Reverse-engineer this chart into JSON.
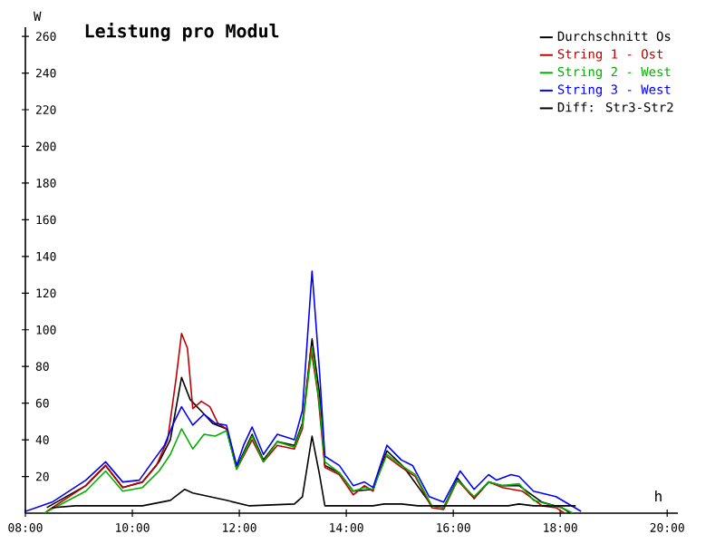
{
  "chart_data": {
    "type": "line",
    "title": "Leistung pro Modul",
    "xlabel": "h",
    "ylabel": "W",
    "xlim": [
      8,
      20.2
    ],
    "ylim": [
      0,
      265
    ],
    "xticks": [
      {
        "value": 8,
        "label": "08:00"
      },
      {
        "value": 10,
        "label": "10:00"
      },
      {
        "value": 12,
        "label": "12:00"
      },
      {
        "value": 14,
        "label": "14:00"
      },
      {
        "value": 16,
        "label": "16:00"
      },
      {
        "value": 18,
        "label": "18:00"
      },
      {
        "value": 20,
        "label": "20:00"
      }
    ],
    "yticks": [
      20,
      40,
      60,
      80,
      100,
      120,
      140,
      160,
      180,
      200,
      220,
      240,
      260
    ],
    "legend": "top right",
    "series": [
      {
        "name": "Durchschnitt Os",
        "color": "#000000",
        "x": [
          8.4,
          9.13,
          9.5,
          9.82,
          10.19,
          10.5,
          10.71,
          10.92,
          11.08,
          11.31,
          11.5,
          11.76,
          11.95,
          12.24,
          12.45,
          12.71,
          13.03,
          13.18,
          13.36,
          13.5,
          13.6,
          13.87,
          14.13,
          14.5,
          14.76,
          15.08,
          15.6,
          15.82,
          16.08,
          16.39,
          16.66,
          16.92,
          17.23,
          17.66,
          18.03,
          18.19
        ],
        "values": [
          3,
          15,
          26,
          14,
          17,
          28,
          40,
          74,
          62,
          55,
          49,
          46,
          25,
          43,
          29,
          39,
          37,
          49,
          95,
          65,
          26,
          22,
          12,
          13,
          34,
          25,
          4,
          3,
          19,
          8,
          17,
          15,
          15,
          6,
          3,
          0
        ]
      },
      {
        "name": "String 1 - Ost",
        "color": "#c00000",
        "x": [
          8.4,
          9.13,
          9.5,
          9.82,
          10.19,
          10.45,
          10.66,
          10.82,
          10.92,
          11.03,
          11.13,
          11.29,
          11.45,
          11.6,
          11.76,
          11.95,
          12.24,
          12.45,
          12.71,
          13.03,
          13.18,
          13.34,
          13.47,
          13.6,
          13.87,
          14.13,
          14.34,
          14.5,
          14.71,
          15.03,
          15.29,
          15.6,
          15.82,
          16.08,
          16.39,
          16.66,
          16.92,
          17.29,
          17.66,
          17.92,
          18.08
        ],
        "values": [
          1,
          15,
          26,
          14,
          17,
          26,
          40,
          74,
          98,
          90,
          57,
          61,
          58,
          49,
          46,
          24,
          40,
          28,
          37,
          35,
          46,
          90,
          65,
          25,
          21,
          10,
          15,
          12,
          32,
          25,
          20,
          3,
          2,
          18,
          8,
          17,
          14,
          12,
          4,
          3,
          0
        ]
      },
      {
        "name": "String 2 - West",
        "color": "#00b000",
        "x": [
          8.35,
          9.13,
          9.5,
          9.82,
          10.19,
          10.5,
          10.71,
          10.92,
          11.13,
          11.34,
          11.55,
          11.76,
          11.95,
          12.24,
          12.45,
          12.71,
          13.03,
          13.18,
          13.36,
          13.5,
          13.6,
          13.87,
          14.13,
          14.34,
          14.5,
          14.76,
          15.08,
          15.29,
          15.6,
          15.82,
          16.08,
          16.39,
          16.66,
          16.92,
          17.23,
          17.5,
          18.03,
          18.24
        ],
        "values": [
          0,
          12,
          23,
          12,
          14,
          23,
          32,
          46,
          35,
          43,
          42,
          45,
          24,
          42,
          28,
          39,
          36,
          48,
          90,
          59,
          28,
          22,
          12,
          14,
          13,
          32,
          25,
          21,
          4,
          3,
          18,
          9,
          17,
          15,
          16,
          7,
          3,
          0
        ]
      },
      {
        "name": "String 3 - West",
        "color": "#0000ff",
        "x": [
          8.0,
          8.5,
          9.13,
          9.5,
          9.82,
          10.13,
          10.4,
          10.6,
          10.77,
          10.92,
          11.13,
          11.34,
          11.55,
          11.76,
          11.95,
          12.08,
          12.24,
          12.45,
          12.71,
          13.03,
          13.18,
          13.36,
          13.5,
          13.6,
          13.87,
          14.13,
          14.34,
          14.5,
          14.76,
          15.03,
          15.24,
          15.55,
          15.82,
          16.13,
          16.39,
          16.66,
          16.81,
          17.08,
          17.23,
          17.5,
          17.92,
          18.39
        ],
        "values": [
          1,
          6,
          18,
          28,
          17,
          18,
          29,
          37,
          49,
          58,
          48,
          54,
          49,
          48,
          26,
          37,
          47,
          32,
          43,
          40,
          56,
          132,
          77,
          31,
          26,
          15,
          17,
          14,
          37,
          29,
          26,
          9,
          6,
          23,
          13,
          21,
          18,
          21,
          20,
          12,
          9,
          1
        ]
      },
      {
        "name": "Diff: Str3-Str2",
        "color": "#000000",
        "x": [
          8.5,
          8.93,
          10.19,
          10.71,
          10.98,
          11.13,
          11.76,
          12.19,
          13.03,
          13.18,
          13.36,
          13.5,
          13.6,
          13.87,
          14.5,
          14.71,
          15.03,
          15.34,
          17.03,
          17.23,
          17.5,
          18.29
        ],
        "values": [
          3,
          4,
          4,
          7,
          13,
          11,
          7,
          4,
          5,
          9,
          42,
          21,
          4,
          4,
          4,
          5,
          5,
          4,
          4,
          5,
          4,
          4
        ]
      }
    ]
  }
}
